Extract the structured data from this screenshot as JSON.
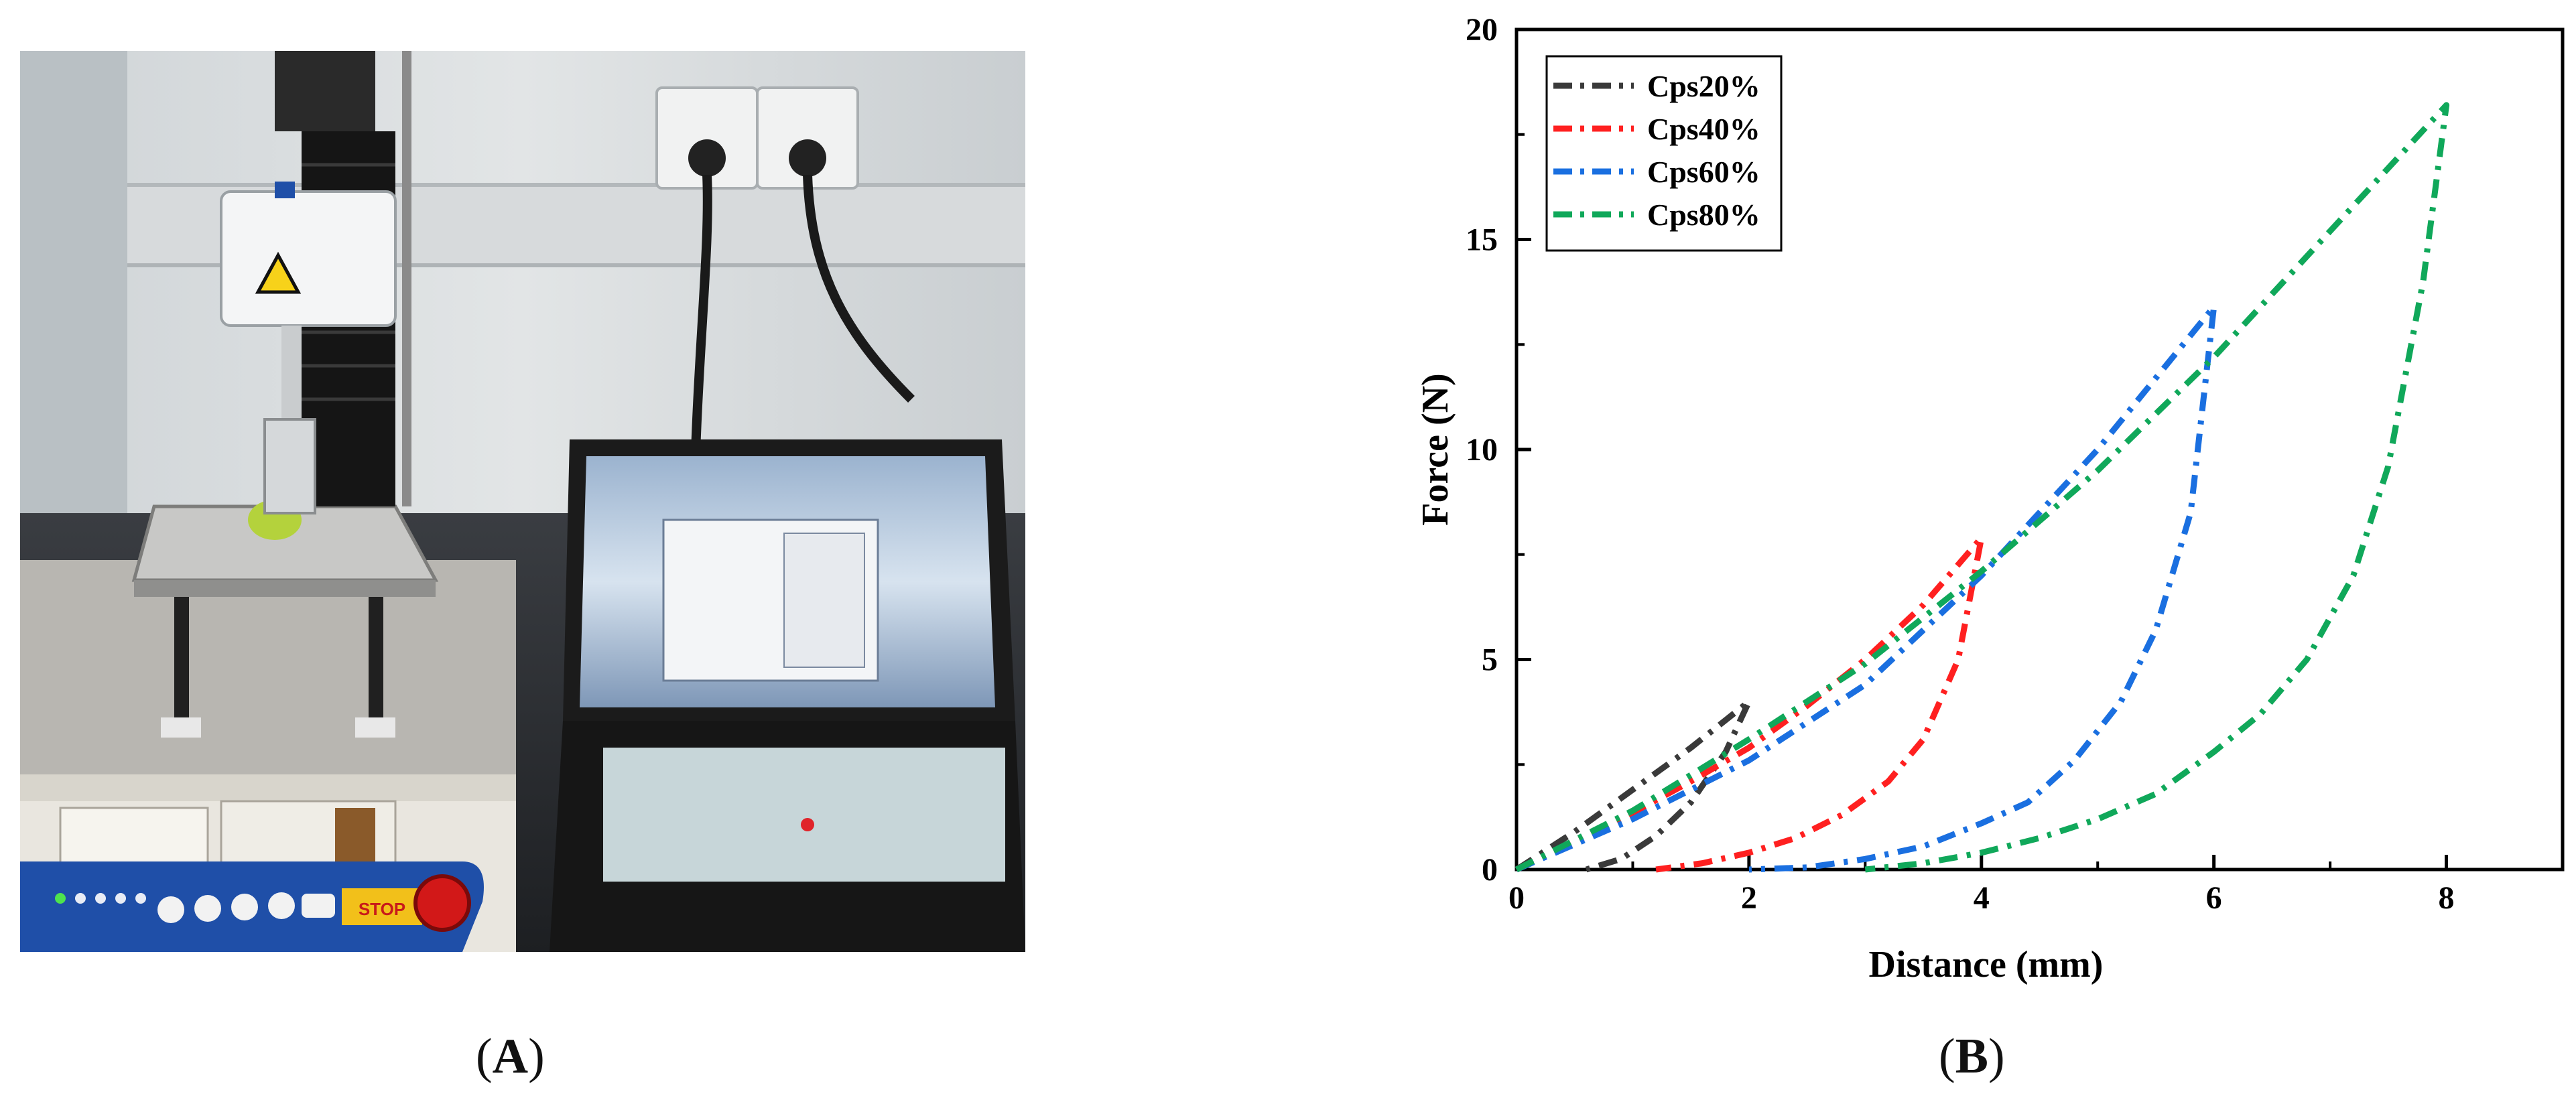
{
  "panels": {
    "a": {
      "open": "(",
      "letter": "A",
      "close": ")"
    },
    "b": {
      "open": "(",
      "letter": "B",
      "close": ")"
    }
  },
  "photo": {
    "description_icon": "texture-analyzer-photo",
    "keypad_label": "STOP"
  },
  "colors": {
    "Cps20%": "#3a3a3a",
    "Cps40%": "#ff2020",
    "Cps60%": "#1a6fe0",
    "Cps80%": "#10a85a"
  },
  "chart_data": {
    "type": "line",
    "title": "",
    "xlabel": "Distance (mm)",
    "ylabel": "Force (N)",
    "xlim": [
      0,
      9
    ],
    "ylim": [
      0,
      20
    ],
    "xticks": [
      0,
      2,
      4,
      6,
      8
    ],
    "yticks": [
      0,
      5,
      10,
      15,
      20
    ],
    "grid": false,
    "legend": "top-left",
    "line_style": "dash-dot",
    "series": [
      {
        "name": "Cps20%",
        "loading": {
          "x": [
            0,
            0.5,
            1.0,
            1.5,
            2.0
          ],
          "y": [
            0,
            0.9,
            1.9,
            2.9,
            4.0
          ]
        },
        "unloading": {
          "x": [
            2.0,
            1.8,
            1.5,
            1.2,
            0.9,
            0.6
          ],
          "y": [
            4.0,
            2.8,
            1.6,
            0.8,
            0.25,
            0
          ]
        }
      },
      {
        "name": "Cps40%",
        "loading": {
          "x": [
            0,
            0.5,
            1.0,
            1.5,
            2.0,
            2.5,
            3.0,
            3.5,
            4.0
          ],
          "y": [
            0,
            0.65,
            1.35,
            2.1,
            2.9,
            3.9,
            5.0,
            6.3,
            7.9
          ]
        },
        "unloading": {
          "x": [
            4.0,
            3.8,
            3.5,
            3.2,
            2.8,
            2.4,
            2.0,
            1.6,
            1.2
          ],
          "y": [
            7.9,
            5.0,
            3.1,
            2.1,
            1.3,
            0.75,
            0.4,
            0.15,
            0
          ]
        }
      },
      {
        "name": "Cps60%",
        "loading": {
          "x": [
            0,
            1.0,
            2.0,
            3.0,
            4.0,
            5.0,
            5.5,
            6.0
          ],
          "y": [
            0,
            1.2,
            2.6,
            4.4,
            7.0,
            10.0,
            11.7,
            13.4
          ]
        },
        "unloading": {
          "x": [
            6.0,
            5.8,
            5.5,
            5.2,
            4.8,
            4.4,
            4.0,
            3.5,
            3.0,
            2.5,
            2.0
          ],
          "y": [
            13.4,
            8.5,
            5.7,
            4.0,
            2.6,
            1.6,
            1.1,
            0.55,
            0.25,
            0.05,
            0
          ]
        }
      },
      {
        "name": "Cps80%",
        "loading": {
          "x": [
            0,
            1.0,
            2.0,
            3.0,
            4.0,
            5.0,
            6.0,
            7.0,
            8.0
          ],
          "y": [
            0,
            1.4,
            3.1,
            4.9,
            7.1,
            9.5,
            12.2,
            15.2,
            18.2
          ]
        },
        "unloading": {
          "x": [
            8.0,
            7.8,
            7.5,
            7.2,
            6.8,
            6.4,
            6.0,
            5.5,
            5.0,
            4.5,
            4.0,
            3.5,
            3.0
          ],
          "y": [
            18.2,
            14.0,
            9.6,
            7.0,
            5.0,
            3.7,
            2.8,
            1.8,
            1.2,
            0.75,
            0.4,
            0.15,
            0
          ]
        }
      }
    ]
  }
}
